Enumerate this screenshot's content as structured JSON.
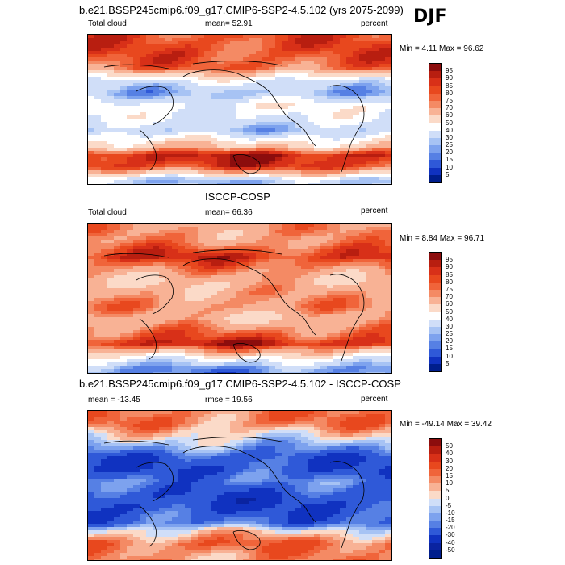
{
  "season": "DJF",
  "panels": [
    {
      "title": "b.e21.BSSP245cmip6.f09_g17.CMIP6-SSP2-4.5.102 (yrs 2075-2099)",
      "left_label": "Total cloud",
      "center_label": "mean=  52.91",
      "right_label": "percent",
      "minmax": "Min =   4.11 Max =  96.62",
      "colorbar_labels": [
        "95",
        "90",
        "85",
        "80",
        "75",
        "70",
        "60",
        "50",
        "40",
        "30",
        "25",
        "20",
        "15",
        "10",
        "5"
      ],
      "colorbar_colors": [
        "#8c0d0d",
        "#b81e10",
        "#d83018",
        "#e8481e",
        "#f0643a",
        "#f48a64",
        "#f8b295",
        "#fbdac8",
        "#ffffff",
        "#d0def8",
        "#a7c3f4",
        "#7da2ee",
        "#5680e4",
        "#2f59d8",
        "#1032c0",
        "#001e8c"
      ]
    },
    {
      "title": "ISCCP-COSP",
      "left_label": "Total cloud",
      "center_label": "mean=  66.36",
      "right_label": "percent",
      "minmax": "Min =   8.84 Max =  96.71",
      "colorbar_labels": [
        "95",
        "90",
        "85",
        "80",
        "75",
        "70",
        "60",
        "50",
        "40",
        "30",
        "25",
        "20",
        "15",
        "10",
        "5"
      ],
      "colorbar_colors": [
        "#8c0d0d",
        "#b81e10",
        "#d83018",
        "#e8481e",
        "#f0643a",
        "#f48a64",
        "#f8b295",
        "#fbdac8",
        "#ffffff",
        "#d0def8",
        "#a7c3f4",
        "#7da2ee",
        "#5680e4",
        "#2f59d8",
        "#1032c0",
        "#001e8c"
      ]
    },
    {
      "title": "b.e21.BSSP245cmip6.f09_g17.CMIP6-SSP2-4.5.102 - ISCCP-COSP",
      "left_label": "mean = -13.45",
      "center_label": "rmse =  19.56",
      "right_label": "percent",
      "minmax": "Min = -49.14 Max =  39.42",
      "colorbar_labels": [
        "50",
        "40",
        "30",
        "20",
        "15",
        "10",
        "5",
        "0",
        "-5",
        "-10",
        "-15",
        "-20",
        "-30",
        "-40",
        "-50"
      ],
      "colorbar_colors": [
        "#8c0d0d",
        "#b81e10",
        "#d83018",
        "#e8481e",
        "#f0643a",
        "#f48a64",
        "#f8b295",
        "#fbdac8",
        "#d0def8",
        "#a7c3f4",
        "#7da2ee",
        "#5680e4",
        "#2f59d8",
        "#1032c0",
        "#0a23a0",
        "#001e8c"
      ]
    }
  ],
  "field_patterns": [
    [
      {
        "lat": 70,
        "val": 82
      },
      {
        "lat": 50,
        "val": 78
      },
      {
        "lat": 35,
        "val": 40
      },
      {
        "lat": 20,
        "val": 25
      },
      {
        "lat": 5,
        "val": 45
      },
      {
        "lat": -10,
        "val": 40
      },
      {
        "lat": -25,
        "val": 30
      },
      {
        "lat": -45,
        "val": 60
      },
      {
        "lat": -55,
        "val": 92
      },
      {
        "lat": -70,
        "val": 85
      },
      {
        "lat": -85,
        "val": 30
      }
    ],
    [
      {
        "lat": 70,
        "val": 70
      },
      {
        "lat": 50,
        "val": 88
      },
      {
        "lat": 35,
        "val": 72
      },
      {
        "lat": 20,
        "val": 62
      },
      {
        "lat": 5,
        "val": 68
      },
      {
        "lat": -10,
        "val": 72
      },
      {
        "lat": -25,
        "val": 62
      },
      {
        "lat": -45,
        "val": 80
      },
      {
        "lat": -55,
        "val": 92
      },
      {
        "lat": -70,
        "val": 50
      },
      {
        "lat": -85,
        "val": 20
      }
    ],
    [
      {
        "lat": 75,
        "val": 15
      },
      {
        "lat": 50,
        "val": -8
      },
      {
        "lat": 35,
        "val": -25
      },
      {
        "lat": 20,
        "val": -28
      },
      {
        "lat": 5,
        "val": -18
      },
      {
        "lat": -10,
        "val": -28
      },
      {
        "lat": -25,
        "val": -30
      },
      {
        "lat": -45,
        "val": -20
      },
      {
        "lat": -55,
        "val": 2
      },
      {
        "lat": -70,
        "val": 18
      },
      {
        "lat": -85,
        "val": 12
      }
    ]
  ]
}
